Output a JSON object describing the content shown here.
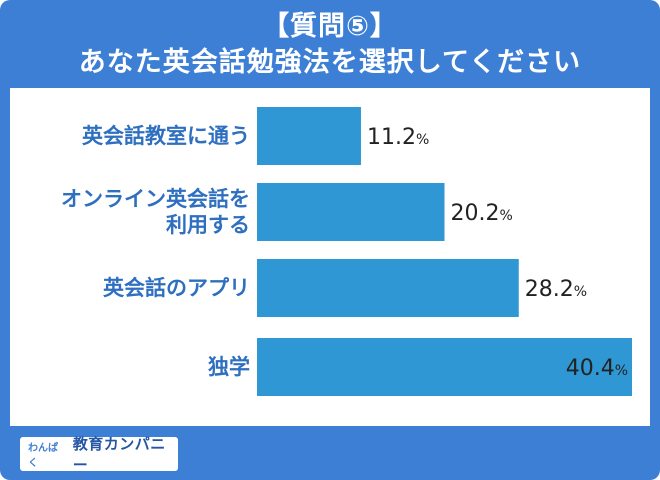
{
  "header": {
    "question": "【質問⑤】",
    "title": "あなた英会話勉強法を選択してください"
  },
  "chart_data": {
    "type": "bar",
    "orientation": "horizontal",
    "categories": [
      [
        "英会話教室に通う"
      ],
      [
        "オンライン英会話を",
        "利用する"
      ],
      [
        "英会話のアプリ"
      ],
      [
        "独学"
      ]
    ],
    "values": [
      11.2,
      20.2,
      28.2,
      40.4
    ],
    "unit": "%",
    "xlim": [
      0,
      40.4
    ],
    "grid": false,
    "legend": "none",
    "bar_color": "#2f97d3",
    "label_color": "#2e6fc0"
  },
  "footer": {
    "logo_small": "わんぱく",
    "logo_main": "教育カンパニー"
  }
}
